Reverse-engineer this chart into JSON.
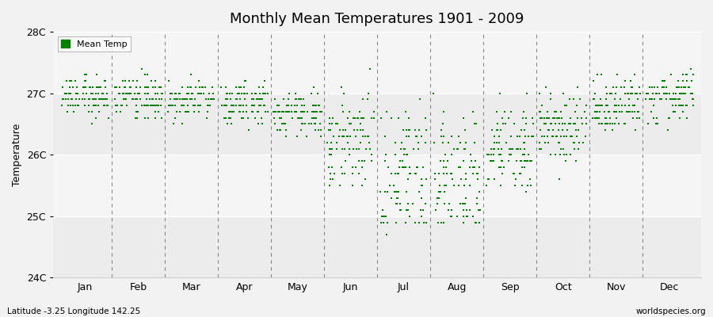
{
  "title": "Monthly Mean Temperatures 1901 - 2009",
  "ylabel": "Temperature",
  "xlabel_months": [
    "Jan",
    "Feb",
    "Mar",
    "Apr",
    "May",
    "Jun",
    "Jul",
    "Aug",
    "Sep",
    "Oct",
    "Nov",
    "Dec"
  ],
  "ylim": [
    24.0,
    28.0
  ],
  "ytick_labels": [
    "24C",
    "25C",
    "26C",
    "27C",
    "28C"
  ],
  "ytick_values": [
    24.0,
    25.0,
    26.0,
    27.0,
    28.0
  ],
  "dot_color": "#008000",
  "legend_label": "Mean Temp",
  "bottom_left": "Latitude -3.25 Longitude 142.25",
  "bottom_right": "worldspecies.org",
  "bg_color": "#f2f2f2",
  "plot_bg": "#f2f2f2",
  "n_years": 109,
  "monthly_means": [
    26.95,
    26.95,
    26.9,
    26.85,
    26.75,
    26.35,
    25.9,
    25.9,
    26.15,
    26.5,
    26.85,
    26.95
  ],
  "monthly_stds": [
    0.15,
    0.15,
    0.15,
    0.15,
    0.18,
    0.35,
    0.42,
    0.42,
    0.3,
    0.25,
    0.2,
    0.18
  ],
  "monthly_lower_tail": [
    0.05,
    0.03,
    0.03,
    0.03,
    0.05,
    0.15,
    0.25,
    0.25,
    0.1,
    0.05,
    0.05,
    0.05
  ]
}
